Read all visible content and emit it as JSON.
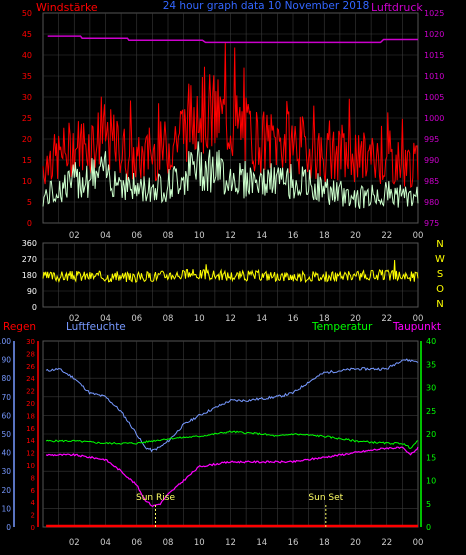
{
  "header": {
    "left": "Windstärke",
    "center": "24 hour graph data  10 November 2018",
    "right": "Luftdruck"
  },
  "colors": {
    "gust": "#ff0000",
    "wind": "#ccffcc",
    "pressure": "#cc00cc",
    "direction": "#ffff00",
    "humidity": "#7799ff",
    "temperature": "#00ff00",
    "dewpoint": "#ff00ff",
    "rain": "#ff0000",
    "axis_left_wind": "#ff0000",
    "axis_right_pressure": "#cc00cc",
    "grid": "#3a3a3a",
    "tick_text_time": "#3366ff",
    "compass": "#ffff00"
  },
  "chart_data": [
    {
      "type": "line",
      "panel": "wind-pressure",
      "x_ticks": [
        "02",
        "04",
        "06",
        "08",
        "10",
        "12",
        "14",
        "16",
        "18",
        "20",
        "22",
        "00"
      ],
      "left_axis": {
        "label": "Windstärke",
        "ylim": [
          0,
          50
        ],
        "ticks": [
          "0",
          "5",
          "10",
          "15",
          "20",
          "25",
          "30",
          "35",
          "40",
          "45",
          "50"
        ]
      },
      "right_axis": {
        "label": "Luftdruck",
        "ylim": [
          975,
          1025
        ],
        "ticks": [
          "975",
          "980",
          "985",
          "990",
          "995",
          "1000",
          "1005",
          "1010",
          "1015",
          "1020",
          "1025"
        ]
      },
      "series": [
        {
          "name": "gust",
          "x": [
            0,
            2,
            4,
            6,
            8,
            10,
            12,
            14,
            16,
            18,
            20,
            22,
            24
          ],
          "values": [
            12,
            16,
            18,
            13,
            16,
            24,
            21,
            17,
            17,
            14,
            14,
            13,
            12
          ]
        },
        {
          "name": "wind",
          "x": [
            0,
            2,
            4,
            6,
            8,
            10,
            12,
            14,
            16,
            18,
            20,
            22,
            24
          ],
          "values": [
            6,
            10,
            12,
            8,
            9,
            14,
            11,
            10,
            10,
            8,
            6,
            7,
            6
          ]
        },
        {
          "name": "pressure",
          "x": [
            0.3,
            2.4,
            2.5,
            5.4,
            5.5,
            10.2,
            10.4,
            21.6,
            21.8,
            22.4,
            24
          ],
          "values": [
            1019.5,
            1019.5,
            1019,
            1019,
            1018.5,
            1018.5,
            1018,
            1018,
            1018.7,
            1018.7,
            1018.7
          ]
        }
      ]
    },
    {
      "type": "line",
      "panel": "wind-direction",
      "x_ticks": [
        "02",
        "04",
        "06",
        "08",
        "10",
        "12",
        "14",
        "16",
        "18",
        "20",
        "22",
        "00"
      ],
      "left_axis": {
        "ylim": [
          0,
          360
        ],
        "ticks": [
          "0",
          "90",
          "180",
          "270",
          "360"
        ]
      },
      "right_axis": {
        "ticks": [
          "N",
          "W",
          "S",
          "O",
          "N"
        ]
      },
      "series": [
        {
          "name": "direction",
          "x": [
            0,
            2,
            4,
            6,
            8,
            10,
            12,
            14,
            16,
            18,
            20,
            22,
            24
          ],
          "values": [
            170,
            175,
            172,
            168,
            180,
            185,
            175,
            178,
            172,
            170,
            175,
            180,
            170
          ]
        }
      ]
    },
    {
      "type": "line",
      "panel": "humidity-temperature",
      "x_ticks": [
        "02",
        "04",
        "06",
        "08",
        "10",
        "12",
        "14",
        "16",
        "18",
        "20",
        "22",
        "00"
      ],
      "headers": [
        "Regen",
        "Luftfeuchte",
        "Temperatur",
        "Taupunkt"
      ],
      "axis_humidity": {
        "ylim": [
          0,
          100
        ],
        "ticks": [
          "0",
          "10",
          "20",
          "30",
          "40",
          "50",
          "60",
          "70",
          "80",
          "90",
          "100"
        ]
      },
      "axis_rain": {
        "ylim": [
          0,
          30
        ],
        "ticks": [
          "0",
          "2",
          "4",
          "6",
          "8",
          "10",
          "12",
          "14",
          "16",
          "18",
          "20",
          "22",
          "24",
          "26",
          "28",
          "30"
        ]
      },
      "axis_temperature": {
        "ylim": [
          0,
          40
        ],
        "ticks": [
          "0",
          "5",
          "10",
          "15",
          "20",
          "25",
          "30",
          "35",
          "40"
        ]
      },
      "annotations": [
        {
          "label": "Sun Rise",
          "x": 7.2
        },
        {
          "label": "Sun Set",
          "x": 18.1
        }
      ],
      "series": [
        {
          "name": "humidity",
          "x": [
            0.2,
            1,
            2,
            3,
            4,
            5,
            6,
            6.5,
            7,
            7.5,
            8,
            9,
            10,
            11,
            12,
            13,
            14,
            15,
            16,
            17,
            18,
            19,
            20,
            21,
            22,
            23,
            24
          ],
          "values": [
            84,
            85,
            80,
            72,
            70,
            62,
            50,
            43,
            41,
            43,
            46,
            55,
            60,
            64,
            68,
            68,
            69,
            70,
            72,
            78,
            83,
            84,
            85,
            85,
            85,
            90,
            89
          ]
        },
        {
          "name": "temperature",
          "x": [
            0.2,
            2,
            4,
            6,
            8,
            10,
            12,
            14,
            15,
            16,
            18,
            20,
            22,
            23,
            23.5,
            24
          ],
          "values": [
            18.5,
            18.5,
            18,
            18,
            19,
            19.5,
            20.5,
            20,
            19.5,
            20,
            19.5,
            18.5,
            18,
            18,
            17,
            18.5
          ]
        },
        {
          "name": "dewpoint",
          "x": [
            0.2,
            2,
            4,
            5,
            6,
            6.5,
            7,
            7.5,
            8,
            10,
            12,
            14,
            16,
            18,
            20,
            22,
            23,
            23.5,
            24
          ],
          "values": [
            15.5,
            15.5,
            14.5,
            12,
            9,
            6,
            4.5,
            5,
            7,
            13,
            14,
            14,
            14,
            15,
            16,
            17,
            17,
            15.5,
            17
          ]
        },
        {
          "name": "rain",
          "x": [
            0.2,
            24
          ],
          "values": [
            0,
            0
          ]
        }
      ]
    }
  ]
}
